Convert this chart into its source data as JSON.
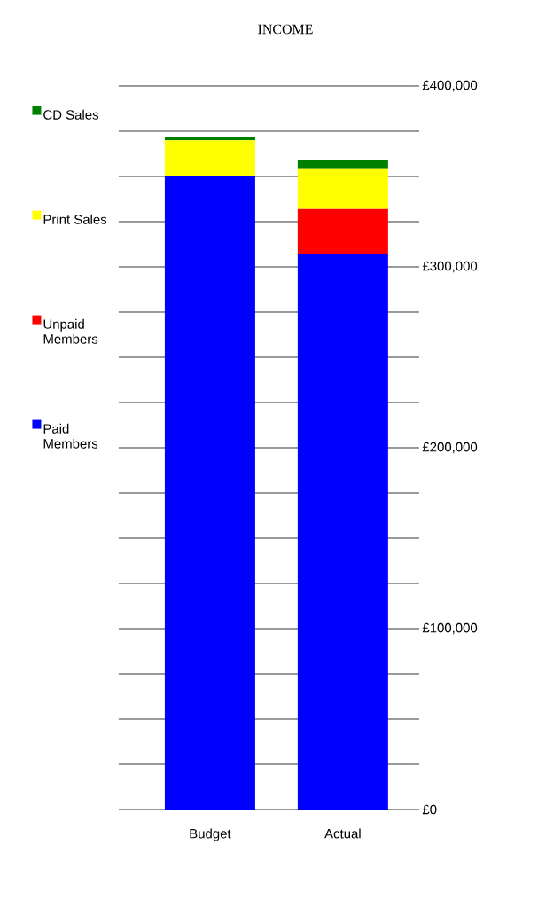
{
  "chart_data": {
    "type": "bar",
    "title": "INCOME",
    "stacked": true,
    "categories": [
      "Budget",
      "Actual"
    ],
    "series": [
      {
        "name": "Paid Members",
        "color": "#0000ff",
        "values": [
          350000,
          307000
        ]
      },
      {
        "name": "Unpaid Members",
        "color": "#ff0000",
        "values": [
          0,
          25000
        ]
      },
      {
        "name": "Print Sales",
        "color": "#ffff00",
        "values": [
          20000,
          22000
        ]
      },
      {
        "name": "CD Sales",
        "color": "#008000",
        "values": [
          2000,
          5000
        ]
      }
    ],
    "ylim": [
      0,
      400000
    ],
    "yticks": [
      {
        "value": 0,
        "label": "£0"
      },
      {
        "value": 25000,
        "label": null
      },
      {
        "value": 50000,
        "label": null
      },
      {
        "value": 75000,
        "label": null
      },
      {
        "value": 100000,
        "label": "£100,000"
      },
      {
        "value": 125000,
        "label": null
      },
      {
        "value": 150000,
        "label": null
      },
      {
        "value": 175000,
        "label": null
      },
      {
        "value": 200000,
        "label": "£200,000"
      },
      {
        "value": 225000,
        "label": null
      },
      {
        "value": 250000,
        "label": null
      },
      {
        "value": 275000,
        "label": null
      },
      {
        "value": 300000,
        "label": "£300,000"
      },
      {
        "value": 325000,
        "label": null
      },
      {
        "value": 350000,
        "label": null
      },
      {
        "value": 375000,
        "label": null
      },
      {
        "value": 400000,
        "label": "£400,000"
      }
    ],
    "grid": "y",
    "legend": "left"
  }
}
